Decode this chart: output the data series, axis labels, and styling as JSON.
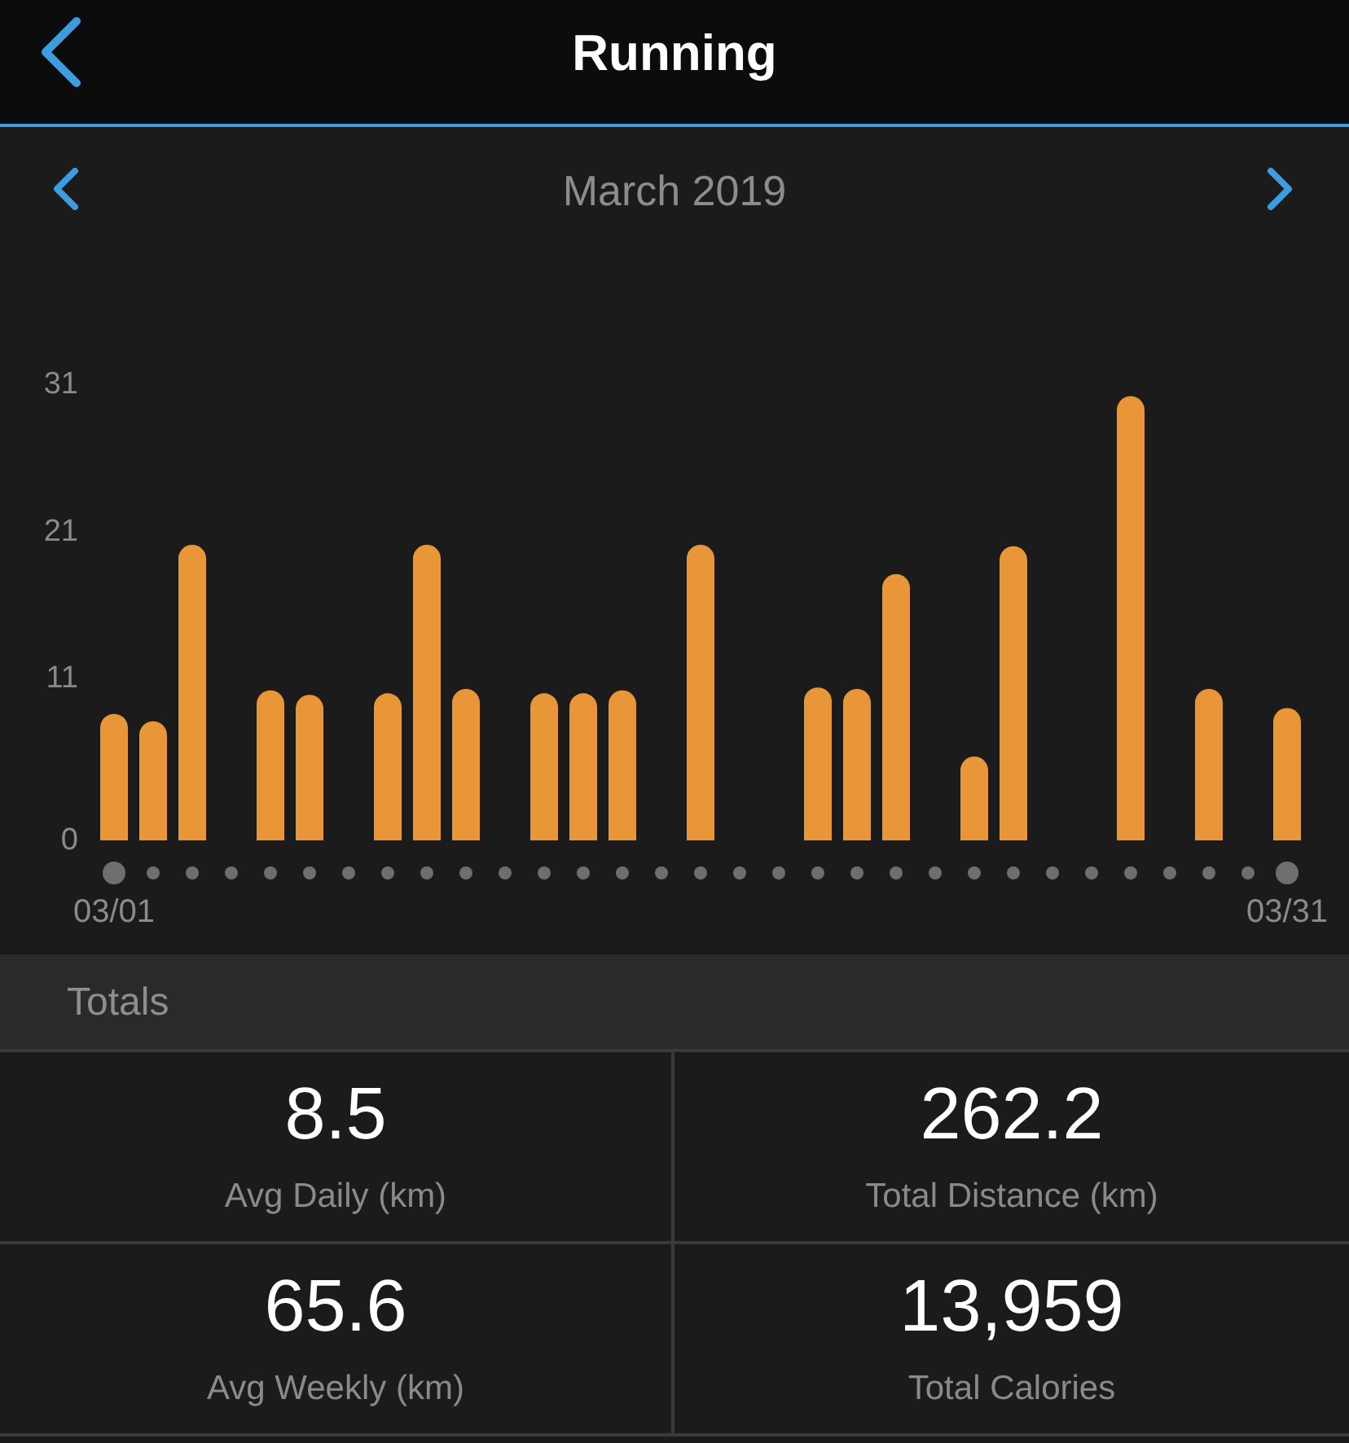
{
  "chart_data": [
    {
      "type": "bar",
      "title": "Running",
      "subtitle": "March 2019",
      "categories": [
        "03/01",
        null,
        null,
        null,
        null,
        null,
        null,
        null,
        null,
        null,
        null,
        null,
        null,
        null,
        null,
        null,
        null,
        null,
        null,
        null,
        null,
        null,
        null,
        null,
        null,
        null,
        null,
        null,
        null,
        null,
        "03/31"
      ],
      "values": [
        8.6,
        8.1,
        20.1,
        null,
        10.2,
        9.9,
        null,
        10.0,
        20.1,
        10.3,
        null,
        10.0,
        10.0,
        10.2,
        null,
        20.1,
        null,
        null,
        10.4,
        10.3,
        18.1,
        null,
        5.7,
        20.0,
        null,
        null,
        30.2,
        null,
        10.3,
        null,
        9.0
      ],
      "color": "#e99638",
      "ylim": [
        0,
        31
      ],
      "yticks": [
        0,
        11,
        21,
        31
      ]
    },
    {
      "type": "other",
      "title": "Totals",
      "annotations": [
        "8.5",
        "Avg Daily (km)",
        "262.2",
        "Total Distance (km)",
        "65.6",
        "Avg Weekly (km)",
        "13,959",
        "Total Calories"
      ]
    }
  ]
}
